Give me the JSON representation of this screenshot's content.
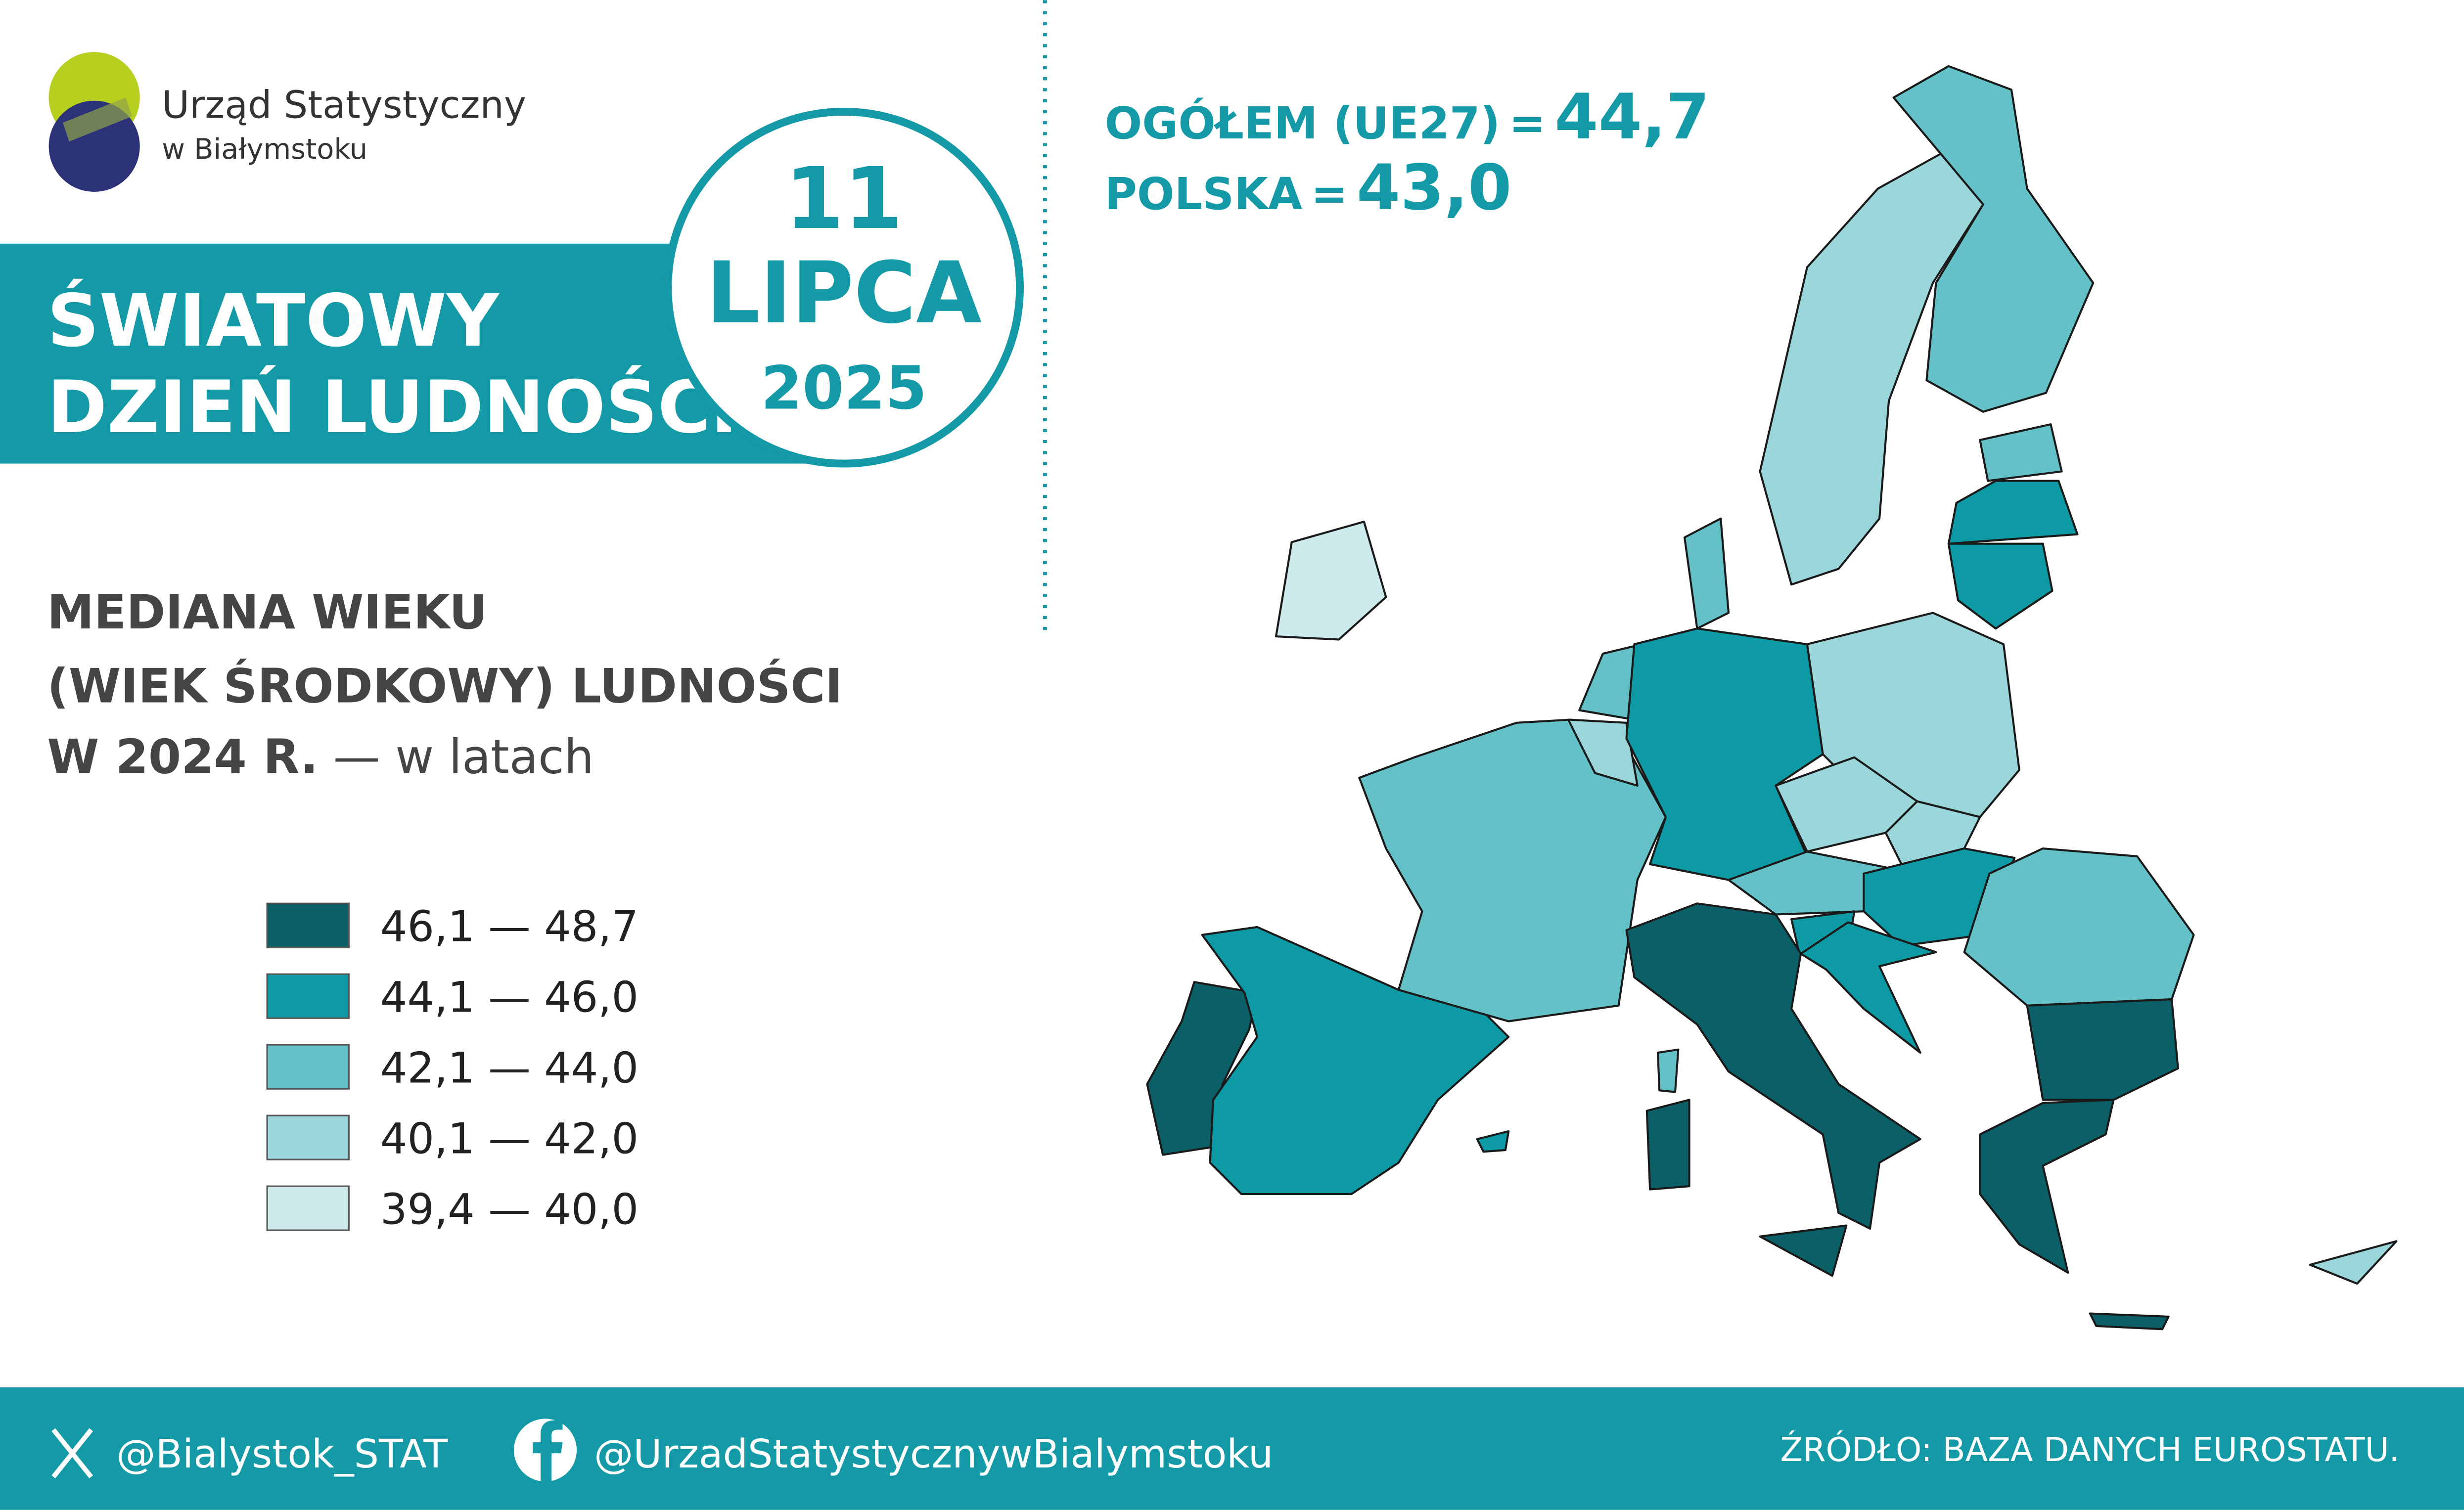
{
  "logo": {
    "name": "Urząd Statystyczny",
    "city": "w Białymstoku"
  },
  "banner": {
    "line1": "ŚWIATOWY",
    "line2": "DZIEŃ LUDNOŚCI"
  },
  "date": {
    "day": "11",
    "month": "LIPCA",
    "year": "2025"
  },
  "headline": {
    "eu_label": "OGÓŁEM (UE27)",
    "eu_eq": "=",
    "eu_value": "44,7",
    "pl_label": "POLSKA",
    "pl_eq": "=",
    "pl_value": "43,0"
  },
  "subtitle": {
    "line1": "MEDIANA WIEKU",
    "line2": "(WIEK ŚRODKOWY) LUDNOŚCI",
    "line3": "W 2024 R.",
    "unit": "— w latach"
  },
  "legend": [
    {
      "label": "46,1 — 48,7",
      "color": "#0b5f66"
    },
    {
      "label": "44,1 — 46,0",
      "color": "#0e9aa5"
    },
    {
      "label": "42,1 — 44,0",
      "color": "#64c1c8"
    },
    {
      "label": "40,1 — 42,0",
      "color": "#9ad6da"
    },
    {
      "label": "39,4 — 40,0",
      "color": "#cdeaec"
    }
  ],
  "footer": {
    "twitter": "@Bialystok_STAT",
    "facebook": "@UrzadStatystycznywBialymstoku",
    "source": "ŹRÓDŁO: BAZA DANYCH EUROSTATU."
  }
}
